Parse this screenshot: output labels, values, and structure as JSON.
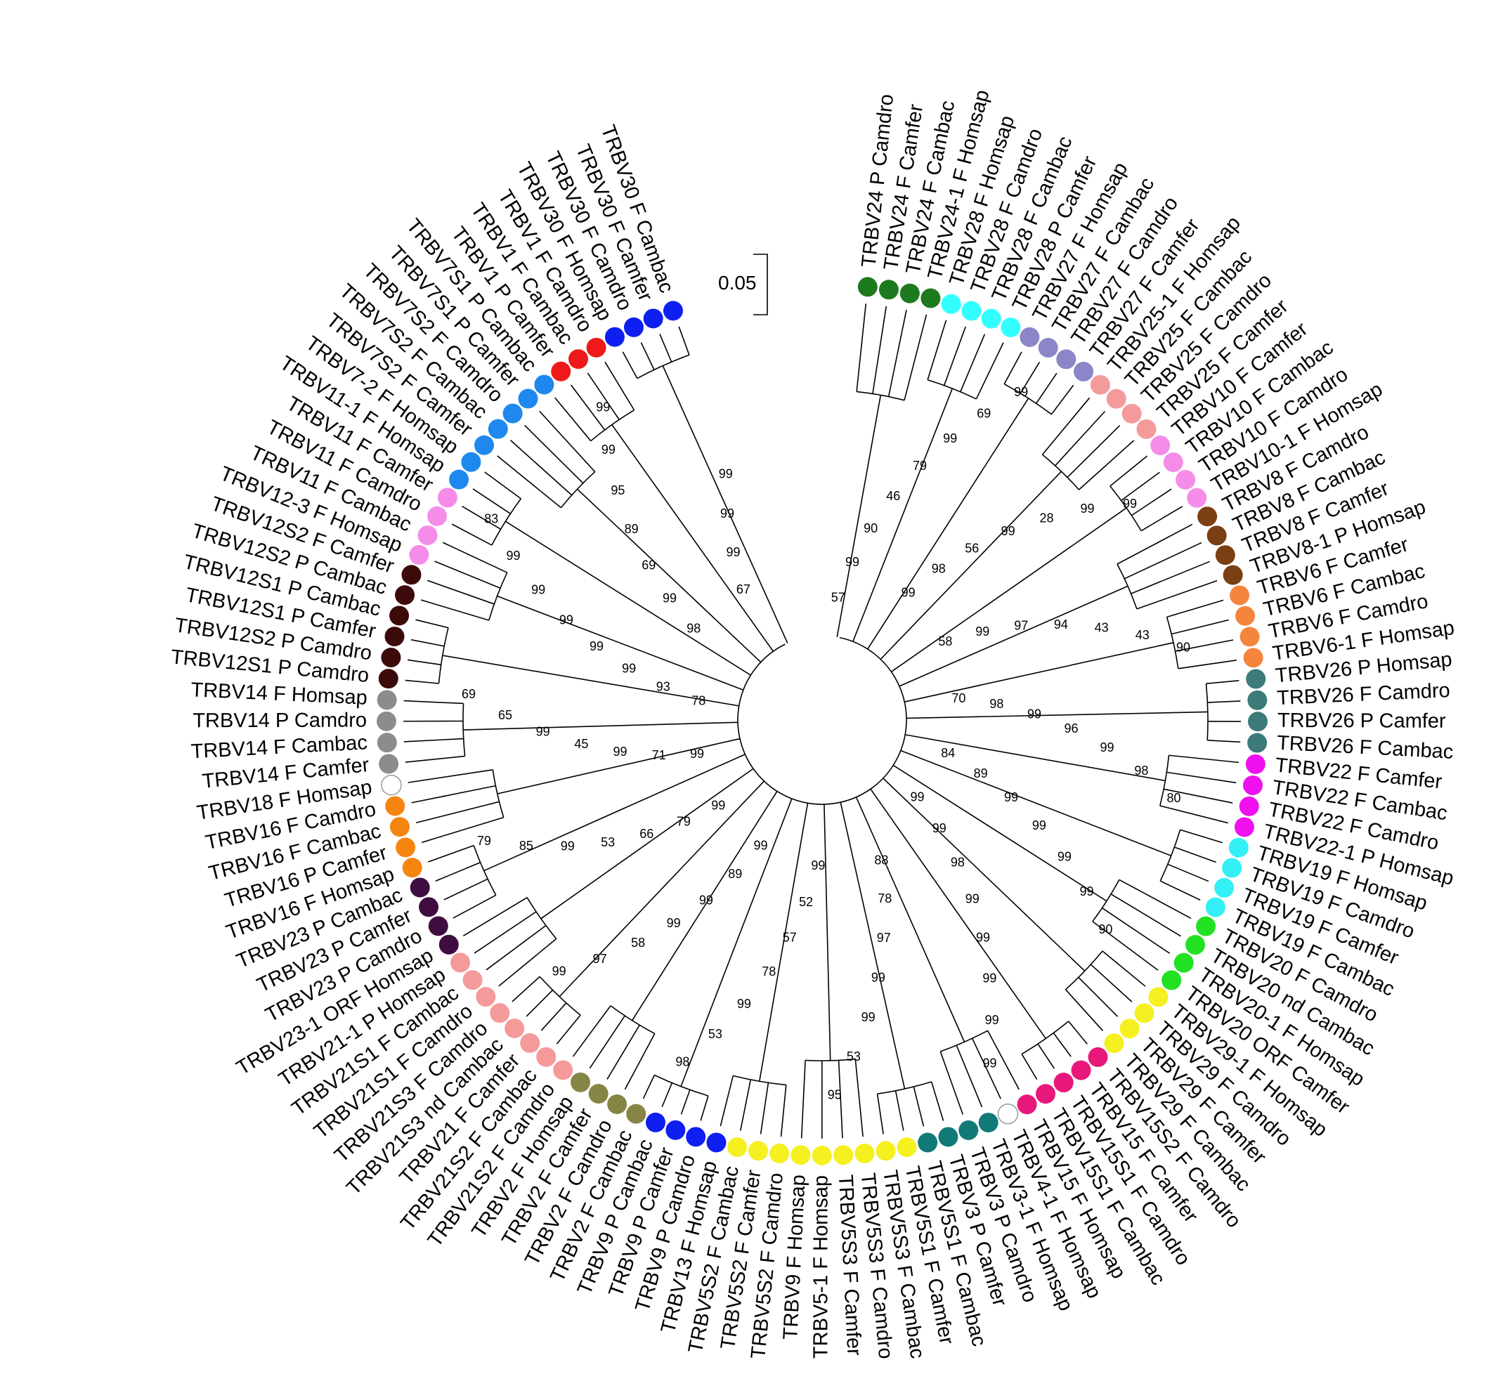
{
  "scale_bar": {
    "label": "0.05"
  },
  "leaves": [
    {
      "label": "TRBV24 P Camdro",
      "color": "#1e7a1e"
    },
    {
      "label": "TRBV24 F Camfer",
      "color": "#1e7a1e"
    },
    {
      "label": "TRBV24 F Cambac",
      "color": "#1e7a1e"
    },
    {
      "label": "TRBV24-1 F Homsap",
      "color": "#1e7a1e"
    },
    {
      "label": "TRBV28 F Homsap",
      "color": "#33ffff"
    },
    {
      "label": "TRBV28 F Camdro",
      "color": "#33ffff"
    },
    {
      "label": "TRBV28 F Cambac",
      "color": "#33ffff"
    },
    {
      "label": "TRBV28 P Camfer",
      "color": "#33ffff"
    },
    {
      "label": "TRBV27 F Homsap",
      "color": "#8a86c8"
    },
    {
      "label": "TRBV27 F Cambac",
      "color": "#8a86c8"
    },
    {
      "label": "TRBV27 F Camdro",
      "color": "#8a86c8"
    },
    {
      "label": "TRBV27 F Camfer",
      "color": "#8a86c8"
    },
    {
      "label": "TRBV25-1 F Homsap",
      "color": "#f59a9a"
    },
    {
      "label": "TRBV25 F Cambac",
      "color": "#f59a9a"
    },
    {
      "label": "TRBV25 F Camdro",
      "color": "#f59a9a"
    },
    {
      "label": "TRBV25 F Camfer",
      "color": "#f59a9a"
    },
    {
      "label": "TRBV10 F Camfer",
      "color": "#f58de8"
    },
    {
      "label": "TRBV10 F Cambac",
      "color": "#f58de8"
    },
    {
      "label": "TRBV10 F Camdro",
      "color": "#f58de8"
    },
    {
      "label": "TRBV10-1 F Homsap",
      "color": "#f58de8"
    },
    {
      "label": "TRBV8 F Camdro",
      "color": "#7a3f12"
    },
    {
      "label": "TRBV8 F Cambac",
      "color": "#7a3f12"
    },
    {
      "label": "TRBV8 F Camfer",
      "color": "#7a3f12"
    },
    {
      "label": "TRBV8-1 P Homsap",
      "color": "#7a3f12"
    },
    {
      "label": "TRBV6 F Camfer",
      "color": "#f5853d"
    },
    {
      "label": "TRBV6 F Cambac",
      "color": "#f5853d"
    },
    {
      "label": "TRBV6 F Camdro",
      "color": "#f5853d"
    },
    {
      "label": "TRBV6-1 F Homsap",
      "color": "#f5853d"
    },
    {
      "label": "TRBV26 P Homsap",
      "color": "#3d7a7a"
    },
    {
      "label": "TRBV26 F Camdro",
      "color": "#3d7a7a"
    },
    {
      "label": "TRBV26 P Camfer",
      "color": "#3d7a7a"
    },
    {
      "label": "TRBV26 F Cambac",
      "color": "#3d7a7a"
    },
    {
      "label": "TRBV22 F Camfer",
      "color": "#ee10ee"
    },
    {
      "label": "TRBV22 F Cambac",
      "color": "#ee10ee"
    },
    {
      "label": "TRBV22 F Camdro",
      "color": "#ee10ee"
    },
    {
      "label": "TRBV22-1 P Homsap",
      "color": "#ee10ee"
    },
    {
      "label": "TRBV19 F Homsap",
      "color": "#33f0f5"
    },
    {
      "label": "TRBV19 F Camdro",
      "color": "#33f0f5"
    },
    {
      "label": "TRBV19 F Camfer",
      "color": "#33f0f5"
    },
    {
      "label": "TRBV19 F Cambac",
      "color": "#33f0f5"
    },
    {
      "label": "TRBV20 F Camdro",
      "color": "#22e022"
    },
    {
      "label": "TRBV20 nd Cambac",
      "color": "#22e022"
    },
    {
      "label": "TRBV20-1 F Homsap",
      "color": "#22e022"
    },
    {
      "label": "TRBV20 ORF Camfer",
      "color": "#22e022"
    },
    {
      "label": "TRBV29-1 F Homsap",
      "color": "#f5f020"
    },
    {
      "label": "TRBV29 F Camdro",
      "color": "#f5f020"
    },
    {
      "label": "TRBV29 F Camfer",
      "color": "#f5f020"
    },
    {
      "label": "TRBV29 F Cambac",
      "color": "#f5f020"
    },
    {
      "label": "TRBV15S2 F Camdro",
      "color": "#e8187a"
    },
    {
      "label": "TRBV15 F Camfer",
      "color": "#e8187a"
    },
    {
      "label": "TRBV15S1 F Camdro",
      "color": "#e8187a"
    },
    {
      "label": "TRBV15S1 F Cambac",
      "color": "#e8187a"
    },
    {
      "label": "TRBV15 F Homsap",
      "color": "#e8187a"
    },
    {
      "label": "TRBV4-1 F Homsap",
      "color": "#ffffff"
    },
    {
      "label": "TRBV3-1 F Homsap",
      "color": "#117a76"
    },
    {
      "label": "TRBV3 P Camdro",
      "color": "#117a76"
    },
    {
      "label": "TRBV3 P Camfer",
      "color": "#117a76"
    },
    {
      "label": "TRBV5S1 F Cambac",
      "color": "#117a76"
    },
    {
      "label": "TRBV5S1 F Camfer",
      "color": "#f5f020"
    },
    {
      "label": "TRBV5S3 F Cambac",
      "color": "#f5f020"
    },
    {
      "label": "TRBV5S3 F Camdro",
      "color": "#f5f020"
    },
    {
      "label": "TRBV5S3 F Camfer",
      "color": "#f5f020"
    },
    {
      "label": "TRBV5-1 F Homsap",
      "color": "#f5f020"
    },
    {
      "label": "TRBV9 F Homsap",
      "color": "#f5f020"
    },
    {
      "label": "TRBV5S2 F Camdro",
      "color": "#f5f020"
    },
    {
      "label": "TRBV5S2 F Camfer",
      "color": "#f5f020"
    },
    {
      "label": "TRBV5S2 F Cambac",
      "color": "#f5f020"
    },
    {
      "label": "TRBV13 F Homsap",
      "color": "#0f1ff0"
    },
    {
      "label": "TRBV9 P Camdro",
      "color": "#0f1ff0"
    },
    {
      "label": "TRBV9 P Camfer",
      "color": "#0f1ff0"
    },
    {
      "label": "TRBV9 P Cambac",
      "color": "#0f1ff0"
    },
    {
      "label": "TRBV2 F Cambac",
      "color": "#858546"
    },
    {
      "label": "TRBV2 F Camdro",
      "color": "#858546"
    },
    {
      "label": "TRBV2 F Camfer",
      "color": "#858546"
    },
    {
      "label": "TRBV2 F Homsap",
      "color": "#858546"
    },
    {
      "label": "TRBV21S2 F Camdro",
      "color": "#f59a9a"
    },
    {
      "label": "TRBV21S2 F Cambac",
      "color": "#f59a9a"
    },
    {
      "label": "TRBV21 F Camfer",
      "color": "#f59a9a"
    },
    {
      "label": "TRBV21S3 nd Cambac",
      "color": "#f59a9a"
    },
    {
      "label": "TRBV21S3 F Camdro",
      "color": "#f59a9a"
    },
    {
      "label": "TRBV21S1 F Camdro",
      "color": "#f59a9a"
    },
    {
      "label": "TRBV21S1 F Cambac",
      "color": "#f59a9a"
    },
    {
      "label": "TRBV21-1 P Homsap",
      "color": "#f59a9a"
    },
    {
      "label": "TRBV23-1 ORF Homsap",
      "color": "#3f0d40"
    },
    {
      "label": "TRBV23 P Camdro",
      "color": "#3f0d40"
    },
    {
      "label": "TRBV23 P Camfer",
      "color": "#3f0d40"
    },
    {
      "label": "TRBV23 P Cambac",
      "color": "#3f0d40"
    },
    {
      "label": "TRBV16 F Homsap",
      "color": "#f5850f"
    },
    {
      "label": "TRBV16 P Camfer",
      "color": "#f5850f"
    },
    {
      "label": "TRBV16 F Cambac",
      "color": "#f5850f"
    },
    {
      "label": "TRBV16 F Camdro",
      "color": "#f5850f"
    },
    {
      "label": "TRBV18 F Homsap",
      "color": "#ffffff"
    },
    {
      "label": "TRBV14 F Camfer",
      "color": "#8c8c8c"
    },
    {
      "label": "TRBV14 F Cambac",
      "color": "#8c8c8c"
    },
    {
      "label": "TRBV14 P Camdro",
      "color": "#8c8c8c"
    },
    {
      "label": "TRBV14 F Homsap",
      "color": "#8c8c8c"
    },
    {
      "label": "TRBV12S1 P Camdro",
      "color": "#3d0a0a"
    },
    {
      "label": "TRBV12S2 P Camdro",
      "color": "#3d0a0a"
    },
    {
      "label": "TRBV12S1 P Camfer",
      "color": "#3d0a0a"
    },
    {
      "label": "TRBV12S1 P Cambac",
      "color": "#3d0a0a"
    },
    {
      "label": "TRBV12S2 P Cambac",
      "color": "#3d0a0a"
    },
    {
      "label": "TRBV12S2 F Camfer",
      "color": "#3d0a0a"
    },
    {
      "label": "TRBV12-3 F Homsap",
      "color": "#f58de8"
    },
    {
      "label": "TRBV11 F Cambac",
      "color": "#f58de8"
    },
    {
      "label": "TRBV11 F Camdro",
      "color": "#f58de8"
    },
    {
      "label": "TRBV11 F Camfer",
      "color": "#f58de8"
    },
    {
      "label": "TRBV11-1 F Homsap",
      "color": "#1e88ee"
    },
    {
      "label": "TRBV7-2 F Homsap",
      "color": "#1e88ee"
    },
    {
      "label": "TRBV7S2 F Camfer",
      "color": "#1e88ee"
    },
    {
      "label": "TRBV7S2 F Cambac",
      "color": "#1e88ee"
    },
    {
      "label": "TRBV7S2 F Camdro",
      "color": "#1e88ee"
    },
    {
      "label": "TRBV7S1 P Camfer",
      "color": "#1e88ee"
    },
    {
      "label": "TRBV7S1 P Cambac",
      "color": "#1e88ee"
    },
    {
      "label": "TRBV1 P Camfer",
      "color": "#ee1a1a"
    },
    {
      "label": "TRBV1 F Cambac",
      "color": "#ee1a1a"
    },
    {
      "label": "TRBV1 F Camdro",
      "color": "#ee1a1a"
    },
    {
      "label": "TRBV30 F Homsap",
      "color": "#0f1ff0"
    },
    {
      "label": "TRBV30 F Camdro",
      "color": "#0f1ff0"
    },
    {
      "label": "TRBV30 F Camfer",
      "color": "#0f1ff0"
    },
    {
      "label": "TRBV30 F Cambac",
      "color": "#0f1ff0"
    }
  ],
  "bootstrap_values": [
    "57",
    "99",
    "90",
    "46",
    "79",
    "99",
    "69",
    "99",
    "99",
    "98",
    "56",
    "99",
    "28",
    "99",
    "99",
    "58",
    "99",
    "97",
    "94",
    "43",
    "43",
    "90",
    "70",
    "98",
    "99",
    "96",
    "99",
    "98",
    "80",
    "84",
    "89",
    "99",
    "99",
    "99",
    "99",
    "90",
    "99",
    "99",
    "98",
    "99",
    "99",
    "99",
    "99",
    "99",
    "88",
    "78",
    "97",
    "99",
    "99",
    "53",
    "95",
    "99",
    "52",
    "57",
    "78",
    "99",
    "53",
    "98",
    "99",
    "89",
    "99",
    "99",
    "58",
    "97",
    "99",
    "99",
    "79",
    "66",
    "53",
    "99",
    "85",
    "79",
    "99",
    "71",
    "99",
    "45",
    "99",
    "65",
    "69",
    "78",
    "93",
    "99",
    "99",
    "99",
    "99",
    "99",
    "83",
    "98",
    "99",
    "69",
    "89",
    "95",
    "99",
    "99",
    "67",
    "99",
    "99",
    "99"
  ]
}
